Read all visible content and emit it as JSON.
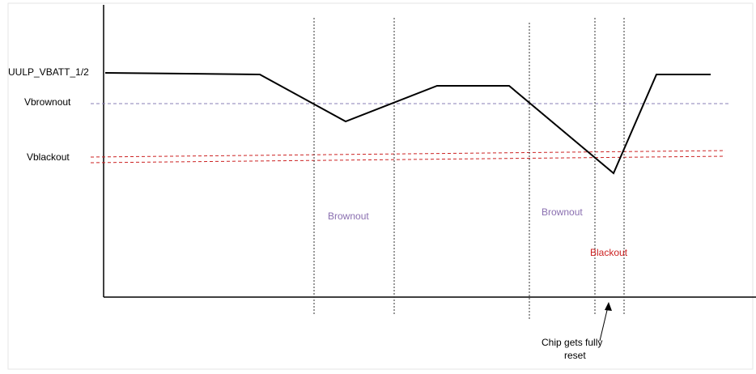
{
  "labels": {
    "vbatt": "UULP_VBATT_1/2",
    "vbrownout": "Vbrownout",
    "vblackout": "Vblackout",
    "brownout_1": "Brownout",
    "brownout_2": "Brownout",
    "blackout": "Blackout",
    "chip_reset_line1": "Chip gets fully",
    "chip_reset_line2": "reset"
  },
  "colors": {
    "waveform": "#000000",
    "axis": "#000000",
    "brownout_level": "#8a7fb5",
    "blackout_level": "#cc2222",
    "brownout_text": "#8a6fb0",
    "blackout_text": "#cc2222",
    "marker_lines": "#333333",
    "frame": "#e6e6e6"
  }
}
